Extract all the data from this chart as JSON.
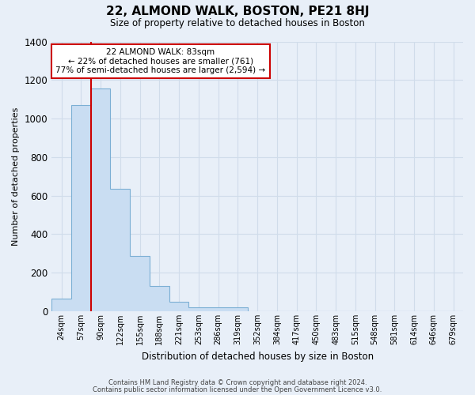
{
  "title": "22, ALMOND WALK, BOSTON, PE21 8HJ",
  "subtitle": "Size of property relative to detached houses in Boston",
  "xlabel": "Distribution of detached houses by size in Boston",
  "ylabel": "Number of detached properties",
  "bar_labels": [
    "24sqm",
    "57sqm",
    "90sqm",
    "122sqm",
    "155sqm",
    "188sqm",
    "221sqm",
    "253sqm",
    "286sqm",
    "319sqm",
    "352sqm",
    "384sqm",
    "417sqm",
    "450sqm",
    "483sqm",
    "515sqm",
    "548sqm",
    "581sqm",
    "614sqm",
    "646sqm",
    "679sqm"
  ],
  "bar_values": [
    65,
    1070,
    1155,
    635,
    285,
    130,
    48,
    22,
    20,
    20,
    0,
    0,
    0,
    0,
    0,
    0,
    0,
    0,
    0,
    0,
    0
  ],
  "bar_color": "#c9ddf2",
  "bar_edge_color": "#7bafd4",
  "vline_x_bin": 2,
  "vline_color": "#cc0000",
  "ylim": [
    0,
    1400
  ],
  "yticks": [
    0,
    200,
    400,
    600,
    800,
    1000,
    1200,
    1400
  ],
  "annotation_title": "22 ALMOND WALK: 83sqm",
  "annotation_line1": "← 22% of detached houses are smaller (761)",
  "annotation_line2": "77% of semi-detached houses are larger (2,594) →",
  "annotation_box_color": "#ffffff",
  "annotation_box_edge": "#cc0000",
  "footnote1": "Contains HM Land Registry data © Crown copyright and database right 2024.",
  "footnote2": "Contains public sector information licensed under the Open Government Licence v3.0.",
  "n_bins": 21,
  "background_color": "#e8eff8",
  "axes_background": "#e8eff8",
  "grid_color": "#d0dcea"
}
